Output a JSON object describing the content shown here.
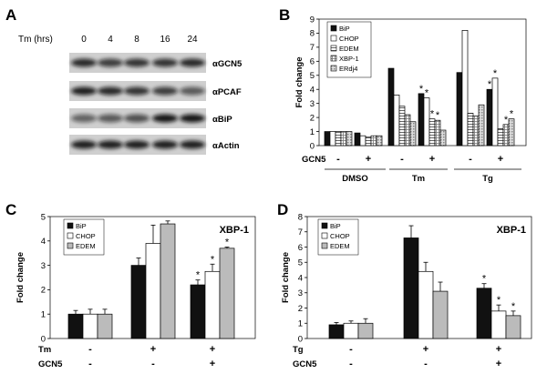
{
  "panels": {
    "A": {
      "letter": "A",
      "time_label": "Tm (hrs)",
      "timepoints": [
        "0",
        "4",
        "8",
        "16",
        "24"
      ],
      "blots": [
        "αGCN5",
        "αPCAF",
        "αBiP",
        "αActin"
      ]
    },
    "B": {
      "letter": "B"
    },
    "C": {
      "letter": "C"
    },
    "D": {
      "letter": "D"
    }
  },
  "chart_data": [
    {
      "panel": "B",
      "type": "bar",
      "ylabel": "Fold change",
      "ylim": [
        0,
        9
      ],
      "yticks": [
        "0",
        "1",
        "2",
        "3",
        "4",
        "5",
        "6",
        "7",
        "8",
        "9"
      ],
      "legend": [
        "BiP",
        "CHOP",
        "EDEM",
        "XBP-1",
        "ERdj4"
      ],
      "categories": [
        {
          "label": "",
          "gcn5": "-",
          "group": "DMSO"
        },
        {
          "label": "",
          "gcn5": "+",
          "group": "DMSO"
        },
        {
          "label": "",
          "gcn5": "-",
          "group": "Tm"
        },
        {
          "label": "",
          "gcn5": "+",
          "group": "Tm"
        },
        {
          "label": "",
          "gcn5": "-",
          "group": "Tg"
        },
        {
          "label": "",
          "gcn5": "+",
          "group": "Tg"
        }
      ],
      "row_label": "GCN5",
      "groups": [
        "DMSO",
        "Tm",
        "Tg"
      ],
      "series": [
        {
          "name": "BiP",
          "values": [
            1.0,
            0.9,
            5.5,
            3.7,
            5.2,
            4.0
          ]
        },
        {
          "name": "CHOP",
          "values": [
            1.0,
            0.7,
            3.6,
            3.4,
            8.2,
            4.8
          ]
        },
        {
          "name": "EDEM",
          "values": [
            1.0,
            0.6,
            2.8,
            1.9,
            2.3,
            1.2
          ]
        },
        {
          "name": "XBP-1",
          "values": [
            1.0,
            0.7,
            2.2,
            1.8,
            2.1,
            1.5
          ]
        },
        {
          "name": "ERdj4",
          "values": [
            1.0,
            0.7,
            1.7,
            1.1,
            2.9,
            1.9
          ]
        }
      ],
      "significance": [
        {
          "category": 3,
          "series": [
            0,
            1,
            2,
            3
          ]
        },
        {
          "category": 5,
          "series": [
            0,
            1,
            3,
            4
          ]
        }
      ]
    },
    {
      "panel": "C",
      "type": "bar",
      "title": "XBP-1",
      "ylabel": "Fold change",
      "ylim": [
        0,
        5
      ],
      "yticks": [
        "0",
        "1",
        "2",
        "3",
        "4",
        "5"
      ],
      "legend": [
        "BiP",
        "CHOP",
        "EDEM"
      ],
      "rows": [
        {
          "label": "Tm",
          "values": [
            "-",
            "+",
            "+"
          ]
        },
        {
          "label": "GCN5",
          "values": [
            "-",
            "-",
            "+"
          ]
        }
      ],
      "series": [
        {
          "name": "BiP",
          "values": [
            1.0,
            3.0,
            2.2
          ],
          "errors": [
            0.15,
            0.3,
            0.2
          ]
        },
        {
          "name": "CHOP",
          "values": [
            1.0,
            3.9,
            2.75
          ],
          "errors": [
            0.2,
            0.75,
            0.3
          ]
        },
        {
          "name": "EDEM",
          "values": [
            1.0,
            4.7,
            3.7
          ],
          "errors": [
            0.2,
            0.12,
            0.05
          ]
        }
      ],
      "significance": [
        {
          "category": 2,
          "series": [
            0,
            1,
            2
          ]
        }
      ]
    },
    {
      "panel": "D",
      "type": "bar",
      "title": "XBP-1",
      "ylabel": "Fold change",
      "ylim": [
        0,
        8
      ],
      "yticks": [
        "0",
        "1",
        "2",
        "3",
        "4",
        "5",
        "6",
        "7",
        "8"
      ],
      "legend": [
        "BiP",
        "CHOP",
        "EDEM"
      ],
      "rows": [
        {
          "label": "Tg",
          "values": [
            "-",
            "+",
            "+"
          ]
        },
        {
          "label": "GCN5",
          "values": [
            "-",
            "-",
            "+"
          ]
        }
      ],
      "series": [
        {
          "name": "BiP",
          "values": [
            0.9,
            6.6,
            3.3
          ],
          "errors": [
            0.15,
            0.8,
            0.3
          ]
        },
        {
          "name": "CHOP",
          "values": [
            1.0,
            4.4,
            1.8
          ],
          "errors": [
            0.15,
            0.6,
            0.4
          ]
        },
        {
          "name": "EDEM",
          "values": [
            1.0,
            3.1,
            1.5
          ],
          "errors": [
            0.3,
            0.6,
            0.3
          ]
        }
      ],
      "significance": [
        {
          "category": 2,
          "series": [
            0,
            1,
            2
          ]
        }
      ]
    }
  ]
}
